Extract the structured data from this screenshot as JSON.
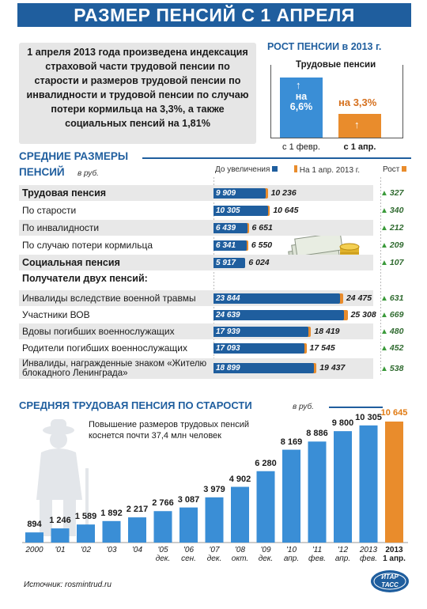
{
  "title": "РАЗМЕР ПЕНСИЙ С 1 АПРЕЛЯ",
  "intro_text": "1 апреля 2013 года произведена индексация страховой части трудовой пенсии по старости и размеров трудовой пенсии по инвалидности и трудовой пенсии по случаю потери кормильца на 3,3%, а также социальных пенсий на 1,81%",
  "growth_panel": {
    "title": "РОСТ ПЕНСИИ в 2013 г.",
    "subtitle": "Трудовые пенсии",
    "bar1_label": "на 6,6%",
    "bar1_date": "с 1 февр.",
    "bar2_label": "на 3,3%",
    "bar2_date": "с 1 апр.",
    "colors": {
      "feb": "#3a8ed6",
      "apr": "#e98c2c"
    }
  },
  "avg_section": {
    "title_line1": "СРЕДНИЕ РАЗМЕРЫ",
    "title_line2": "ПЕНСИЙ",
    "unit": "в руб.",
    "legend_before": "До увеличения",
    "legend_after": "На 1 апр. 2013 г.",
    "legend_growth": "Рост",
    "recipients_header": "Получатели двух пенсий:",
    "colors": {
      "before": "#1f5e9e",
      "after": "#e98c2c",
      "growth": "#3a9a3a"
    }
  },
  "chart_data": [
    {
      "type": "bar",
      "title": "СРЕДНИЕ РАЗМЕРЫ ПЕНСИЙ",
      "unit": "в руб.",
      "categories": [
        "Трудовая пенсия",
        "По старости",
        "По инвалидности",
        "По случаю потери кормильца",
        "Социальная пенсия",
        "Инвалиды вследствие военной травмы",
        "Участники ВОВ",
        "Вдовы погибших военнослужащих",
        "Родители погибших военнослужащих",
        "Инвалиды, награжденные знаком «Жителю блокадного Ленинграда»"
      ],
      "series": [
        {
          "name": "До увеличения",
          "values": [
            9909,
            10305,
            6439,
            6341,
            5917,
            23844,
            24639,
            17939,
            17093,
            18899
          ],
          "labels": [
            "9 909",
            "10 305",
            "6 439",
            "6 341",
            "5 917",
            "23 844",
            "24 639",
            "17 939",
            "17 093",
            "18 899"
          ]
        },
        {
          "name": "На 1 апр. 2013 г.",
          "values": [
            10236,
            10645,
            6651,
            6550,
            6024,
            24475,
            25308,
            18419,
            17545,
            19437
          ],
          "labels": [
            "10 236",
            "10 645",
            "6 651",
            "6 550",
            "6 024",
            "24 475",
            "25 308",
            "18 419",
            "17 545",
            "19 437"
          ]
        },
        {
          "name": "Рост",
          "values": [
            327,
            340,
            212,
            209,
            107,
            631,
            669,
            480,
            452,
            538
          ]
        }
      ]
    },
    {
      "type": "bar",
      "title": "СРЕДНЯЯ ТРУДОВАЯ ПЕНСИЯ ПО СТАРОСТИ",
      "unit": "в руб.",
      "note": "Повышение размеров трудовых пенсий коснется почти 37,4 млн человек",
      "categories": [
        [
          "2000"
        ],
        [
          "'01"
        ],
        [
          "'02"
        ],
        [
          "'03"
        ],
        [
          "'04"
        ],
        [
          "'05",
          "дек."
        ],
        [
          "'06",
          "сен."
        ],
        [
          "'07",
          "дек."
        ],
        [
          "'08",
          "окт."
        ],
        [
          "'09",
          "дек."
        ],
        [
          "'10",
          "апр."
        ],
        [
          "'11",
          "фев."
        ],
        [
          "'12",
          "апр."
        ],
        [
          "2013",
          "фев."
        ],
        [
          "2013",
          "1 апр."
        ]
      ],
      "values": [
        894,
        1246,
        1589,
        1892,
        2217,
        2766,
        3087,
        3979,
        4902,
        6280,
        8169,
        8886,
        9800,
        10305,
        10645
      ],
      "labels": [
        "894",
        "1 246",
        "1 589",
        "1 892",
        "2 217",
        "2 766",
        "3 087",
        "3 979",
        "4 902",
        "6 280",
        "8 169",
        "8 886",
        "9 800",
        "10 305",
        "10 645"
      ],
      "highlight_index": 14,
      "colors": {
        "bar": "#3a8ed6",
        "highlight": "#e98c2c"
      }
    }
  ],
  "source": "Источник: rosmintrud.ru",
  "logo": "ИТАР ТАСС"
}
